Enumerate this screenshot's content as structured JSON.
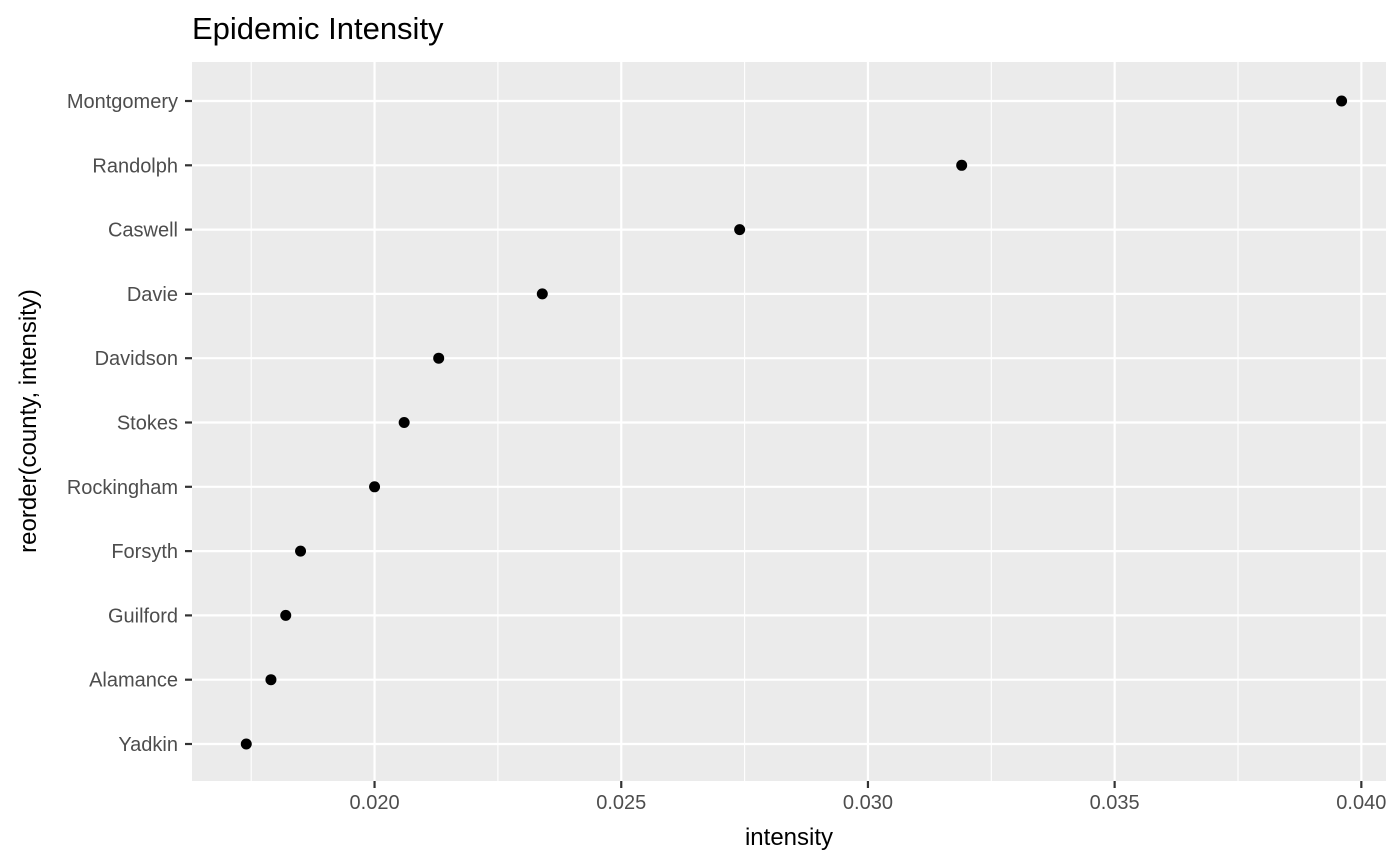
{
  "chart_data": {
    "type": "scatter",
    "title": "Epidemic Intensity",
    "xlabel": "intensity",
    "ylabel": "reorder(county, intensity)",
    "xlim": [
      0.0163,
      0.0405
    ],
    "x_ticks": [
      0.02,
      0.025,
      0.03,
      0.035,
      0.04
    ],
    "x_tick_labels": [
      "0.020",
      "0.025",
      "0.030",
      "0.035",
      "0.040"
    ],
    "x_minor_ticks": [
      0.0175,
      0.0225,
      0.0275,
      0.0325,
      0.0375
    ],
    "categories": [
      "Montgomery",
      "Randolph",
      "Caswell",
      "Davie",
      "Davidson",
      "Stokes",
      "Rockingham",
      "Forsyth",
      "Guilford",
      "Alamance",
      "Yadkin"
    ],
    "values": [
      0.0396,
      0.0319,
      0.0274,
      0.0234,
      0.0213,
      0.0206,
      0.02,
      0.0185,
      0.0182,
      0.0179,
      0.0174
    ],
    "grid": true,
    "legend": "none",
    "panel_color": "#ebebeb",
    "grid_color": "#ffffff",
    "point_color": "#000000",
    "tick_color": "#333333"
  }
}
